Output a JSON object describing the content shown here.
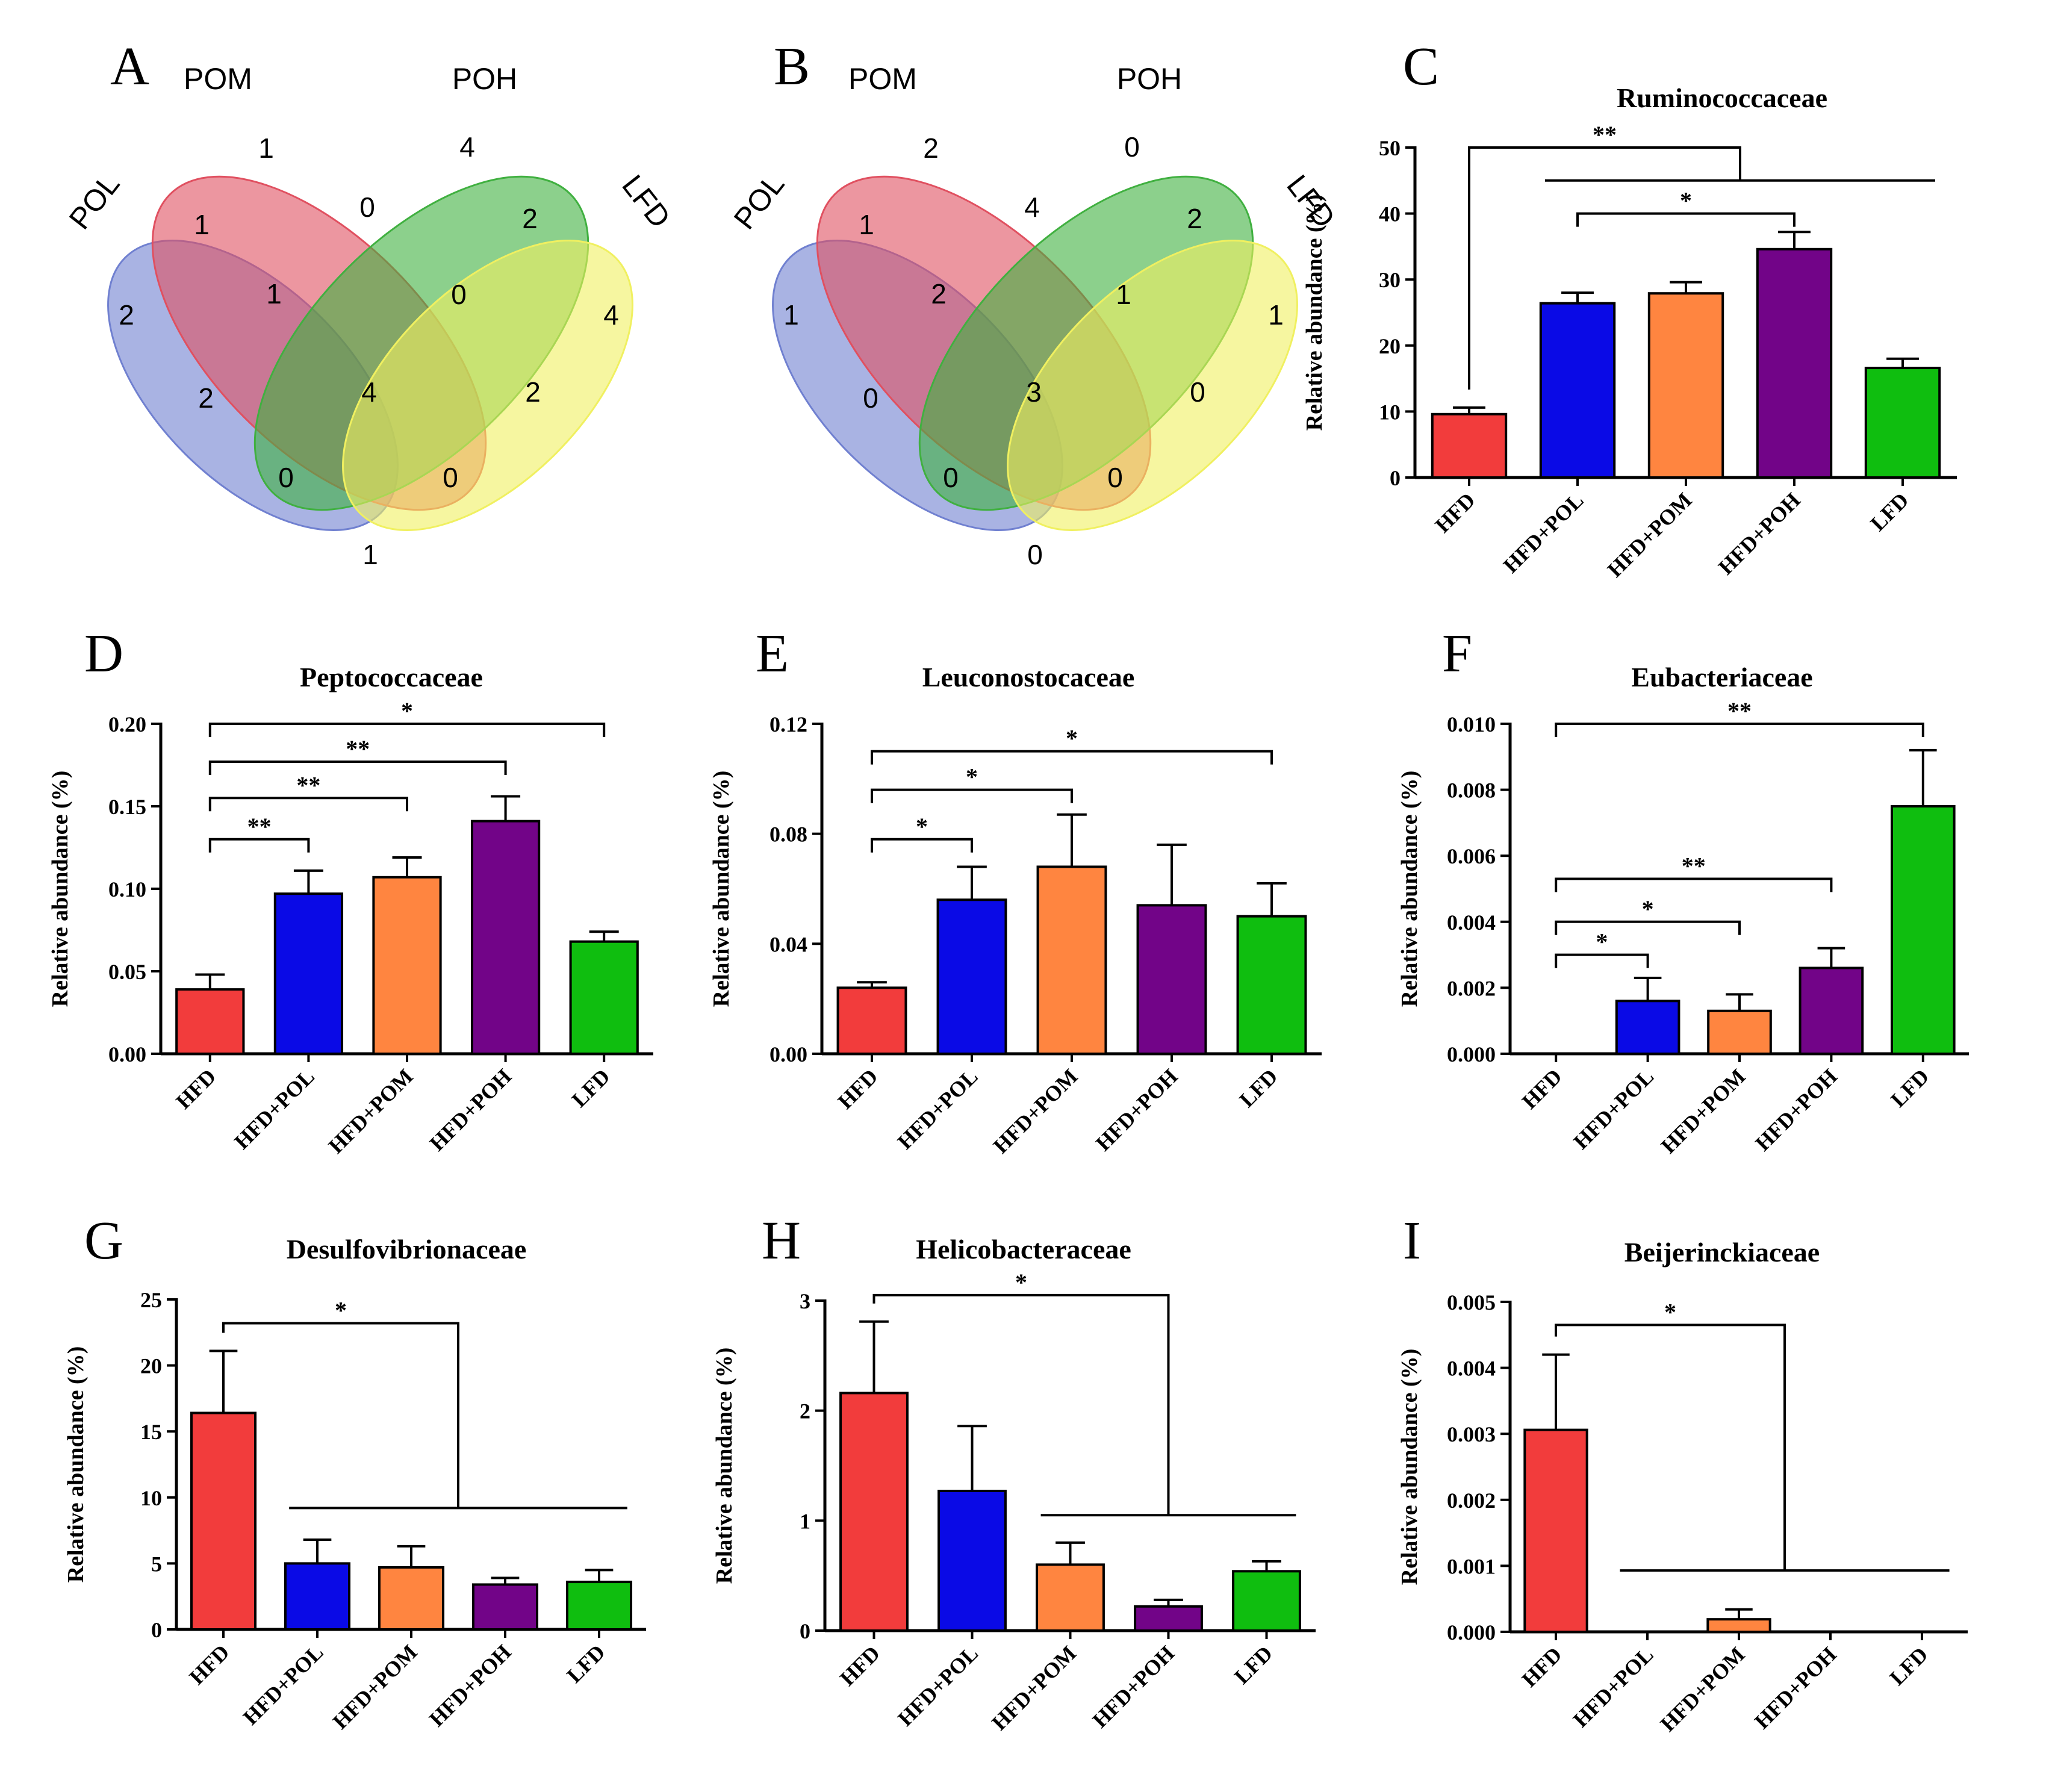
{
  "colors": {
    "HFD": "#f23c3c",
    "HFD+POL": "#0a0ae6",
    "HFD+POM": "#ff8540",
    "HFD+POH": "#720488",
    "LFD": "#0fbe0f",
    "venn_POL": "#7080d0",
    "venn_POM": "#e05060",
    "venn_POH": "#40b040",
    "venn_LFD": "#f0f060"
  },
  "venn": [
    {
      "panel": "A",
      "sets": [
        "POL",
        "POM",
        "POH",
        "LFD"
      ],
      "regions": {
        "POL": "2",
        "POM": "1",
        "POH": "4",
        "LFD": "4",
        "POL_POM": "1",
        "POM_POH": "0",
        "POH_LFD": "2",
        "POL_POM_POH": "1",
        "POM_POH_LFD": "0",
        "POL_POH": "2",
        "POM_LFD": "2",
        "ALL": "4",
        "POL_POH_LFD": "0",
        "POL_POM_LFD": "0",
        "POL_LFD": "1"
      }
    },
    {
      "panel": "B",
      "sets": [
        "POL",
        "POM",
        "POH",
        "LFD"
      ],
      "regions": {
        "POL": "1",
        "POM": "2",
        "POH": "0",
        "LFD": "1",
        "POL_POM": "1",
        "POM_POH": "4",
        "POH_LFD": "2",
        "POL_POM_POH": "2",
        "POM_POH_LFD": "1",
        "POL_POH": "0",
        "POM_LFD": "0",
        "ALL": "3",
        "POL_POH_LFD": "0",
        "POL_POM_LFD": "0",
        "POL_LFD": "0"
      }
    }
  ],
  "chart_data": [
    {
      "panel": "C",
      "type": "bar",
      "title": "Ruminococcaceae",
      "ylabel": "Relative abundance  (%)",
      "categories": [
        "HFD",
        "HFD+POL",
        "HFD+POM",
        "HFD+POH",
        "LFD"
      ],
      "values": [
        9.6,
        26.4,
        27.9,
        34.6,
        16.6
      ],
      "errors": [
        1.0,
        1.6,
        1.7,
        2.6,
        1.4
      ],
      "ylim": [
        0,
        50
      ],
      "yticks": [
        "0",
        "10",
        "20",
        "30",
        "40",
        "50"
      ],
      "sig": [
        {
          "type": "group",
          "from": 0,
          "to": [
            1,
            4
          ],
          "label": "**",
          "y": 50,
          "y2": 45
        },
        {
          "type": "pair",
          "from": 1,
          "to": 3,
          "label": "*",
          "y": 40
        }
      ]
    },
    {
      "panel": "D",
      "type": "bar",
      "title": "Peptococcaceae",
      "ylabel": "Relative abundance  (%)",
      "categories": [
        "HFD",
        "HFD+POL",
        "HFD+POM",
        "HFD+POH",
        "LFD"
      ],
      "values": [
        0.039,
        0.097,
        0.107,
        0.141,
        0.068
      ],
      "errors": [
        0.009,
        0.014,
        0.012,
        0.015,
        0.006
      ],
      "ylim": [
        0,
        0.2
      ],
      "yticks": [
        "0.00",
        "0.05",
        "0.10",
        "0.15",
        "0.20"
      ],
      "sig": [
        {
          "type": "pair",
          "from": 0,
          "to": 1,
          "label": "**",
          "y": 0.13
        },
        {
          "type": "pair",
          "from": 0,
          "to": 2,
          "label": "**",
          "y": 0.155
        },
        {
          "type": "pair",
          "from": 0,
          "to": 3,
          "label": "**",
          "y": 0.177
        },
        {
          "type": "pair",
          "from": 0,
          "to": 4,
          "label": "*",
          "y": 0.2
        }
      ]
    },
    {
      "panel": "E",
      "type": "bar",
      "title": "Leuconostocaceae",
      "ylabel": "Relative abundance  (%)",
      "categories": [
        "HFD",
        "HFD+POL",
        "HFD+POM",
        "HFD+POH",
        "LFD"
      ],
      "values": [
        0.024,
        0.056,
        0.068,
        0.054,
        0.05
      ],
      "errors": [
        0.002,
        0.012,
        0.019,
        0.022,
        0.012
      ],
      "ylim": [
        0,
        0.12
      ],
      "yticks": [
        "0.00",
        "0.04",
        "0.08",
        "0.12"
      ],
      "sig": [
        {
          "type": "pair",
          "from": 0,
          "to": 1,
          "label": "*",
          "y": 0.078
        },
        {
          "type": "pair",
          "from": 0,
          "to": 2,
          "label": "*",
          "y": 0.096
        },
        {
          "type": "pair",
          "from": 0,
          "to": 4,
          "label": "*",
          "y": 0.11
        }
      ]
    },
    {
      "panel": "F",
      "type": "bar",
      "title": "Eubacteriaceae",
      "ylabel": "Relative abundance  (%)",
      "categories": [
        "HFD",
        "HFD+POL",
        "HFD+POM",
        "HFD+POH",
        "LFD"
      ],
      "values": [
        0.0,
        0.0016,
        0.0013,
        0.0026,
        0.0075
      ],
      "errors": [
        0.0,
        0.0007,
        0.0005,
        0.0006,
        0.0017
      ],
      "ylim": [
        0,
        0.01
      ],
      "yticks": [
        "0.000",
        "0.002",
        "0.004",
        "0.006",
        "0.008",
        "0.010"
      ],
      "sig": [
        {
          "type": "pair",
          "from": 0,
          "to": 1,
          "label": "*",
          "y": 0.003
        },
        {
          "type": "pair",
          "from": 0,
          "to": 2,
          "label": "*",
          "y": 0.004
        },
        {
          "type": "pair",
          "from": 0,
          "to": 3,
          "label": "**",
          "y": 0.0053
        },
        {
          "type": "pair",
          "from": 0,
          "to": 4,
          "label": "**",
          "y": 0.01
        }
      ]
    },
    {
      "panel": "G",
      "type": "bar",
      "title": "Desulfovibrionaceae",
      "ylabel": "Relative abundance  (%)",
      "categories": [
        "HFD",
        "HFD+POL",
        "HFD+POM",
        "HFD+POH",
        "LFD"
      ],
      "values": [
        16.4,
        5.0,
        4.7,
        3.4,
        3.6
      ],
      "errors": [
        4.7,
        1.8,
        1.6,
        0.5,
        0.9
      ],
      "ylim": [
        0,
        25
      ],
      "yticks": [
        "0",
        "5",
        "10",
        "15",
        "20",
        "25"
      ],
      "sig": [
        {
          "type": "group",
          "from": 0,
          "to": [
            1,
            4
          ],
          "label": "*",
          "y": 23.2,
          "y2": 9.2
        }
      ]
    },
    {
      "panel": "H",
      "type": "bar",
      "title": "Helicobacteraceae",
      "ylabel": "Relative abundance  (%)",
      "categories": [
        "HFD",
        "HFD+POL",
        "HFD+POM",
        "HFD+POH",
        "LFD"
      ],
      "values": [
        2.16,
        1.27,
        0.6,
        0.22,
        0.54
      ],
      "errors": [
        0.65,
        0.59,
        0.2,
        0.06,
        0.09
      ],
      "ylim": [
        0,
        3
      ],
      "yticks": [
        "0",
        "1",
        "2",
        "3"
      ],
      "sig": [
        {
          "type": "group",
          "from": 0,
          "to": [
            2,
            4
          ],
          "label": "*",
          "y": 3.05,
          "y2": 1.05
        }
      ]
    },
    {
      "panel": "I",
      "type": "bar",
      "title": "Beijerinckiaceae",
      "ylabel": "Relative abundance  (%)",
      "categories": [
        "HFD",
        "HFD+POL",
        "HFD+POM",
        "HFD+POH",
        "LFD"
      ],
      "values": [
        0.00306,
        0.0,
        0.00019,
        0.0,
        0.0
      ],
      "errors": [
        0.00114,
        0.0,
        0.00015,
        0.0,
        0.0
      ],
      "ylim": [
        0,
        0.005
      ],
      "yticks": [
        "0.000",
        "0.001",
        "0.002",
        "0.003",
        "0.004",
        "0.005"
      ],
      "sig": [
        {
          "type": "group",
          "from": 0,
          "to": [
            1,
            4
          ],
          "label": "*",
          "y": 0.00465,
          "y2": 0.00093
        }
      ]
    }
  ]
}
